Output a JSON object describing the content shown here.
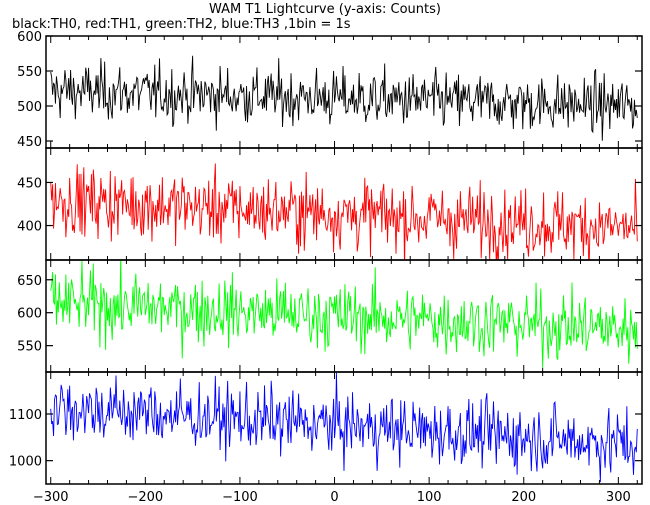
{
  "title": "WAM T1 Lightcurve (y-axis: Counts)",
  "subtitle": "black:TH0, red:TH1, green:TH2, blue:TH3 ,1bin = 1s",
  "chart_data": [
    {
      "type": "line",
      "series": [
        {
          "name": "TH0",
          "color": "#000000"
        }
      ],
      "x": {
        "start": -300,
        "end": 320,
        "step": 1
      },
      "xlim": [
        -305,
        325
      ],
      "ylim": [
        440,
        600
      ],
      "yticks": [
        450,
        500,
        550,
        600
      ],
      "trend": {
        "start": 522,
        "end": 500
      },
      "noise_sd": 20,
      "xticks": [
        -300,
        -200,
        -100,
        0,
        100,
        200,
        300
      ],
      "ylabel": "Counts"
    },
    {
      "type": "line",
      "series": [
        {
          "name": "TH1",
          "color": "#ff0000"
        }
      ],
      "x": {
        "start": -300,
        "end": 320,
        "step": 1
      },
      "xlim": [
        -305,
        325
      ],
      "ylim": [
        360,
        490
      ],
      "yticks": [
        400,
        450
      ],
      "trend": {
        "start": 430,
        "end": 397
      },
      "noise_sd": 20,
      "xticks": [
        -300,
        -200,
        -100,
        0,
        100,
        200,
        300
      ],
      "ylabel": "Counts"
    },
    {
      "type": "line",
      "series": [
        {
          "name": "TH2",
          "color": "#00ff00"
        }
      ],
      "x": {
        "start": -300,
        "end": 320,
        "step": 1
      },
      "xlim": [
        -305,
        325
      ],
      "ylim": [
        510,
        680
      ],
      "yticks": [
        550,
        600,
        650
      ],
      "trend": {
        "start": 615,
        "end": 575
      },
      "noise_sd": 25,
      "xticks": [
        -300,
        -200,
        -100,
        0,
        100,
        200,
        300
      ],
      "ylabel": "Counts"
    },
    {
      "type": "line",
      "series": [
        {
          "name": "TH3",
          "color": "#0000ff"
        }
      ],
      "x": {
        "start": -300,
        "end": 320,
        "step": 1
      },
      "xlim": [
        -305,
        325
      ],
      "ylim": [
        950,
        1190
      ],
      "yticks": [
        1000,
        1100
      ],
      "trend": {
        "start": 1115,
        "end": 1035
      },
      "noise_sd": 35,
      "xticks": [
        -300,
        -200,
        -100,
        0,
        100,
        200,
        300
      ],
      "ylabel": "Counts"
    }
  ]
}
